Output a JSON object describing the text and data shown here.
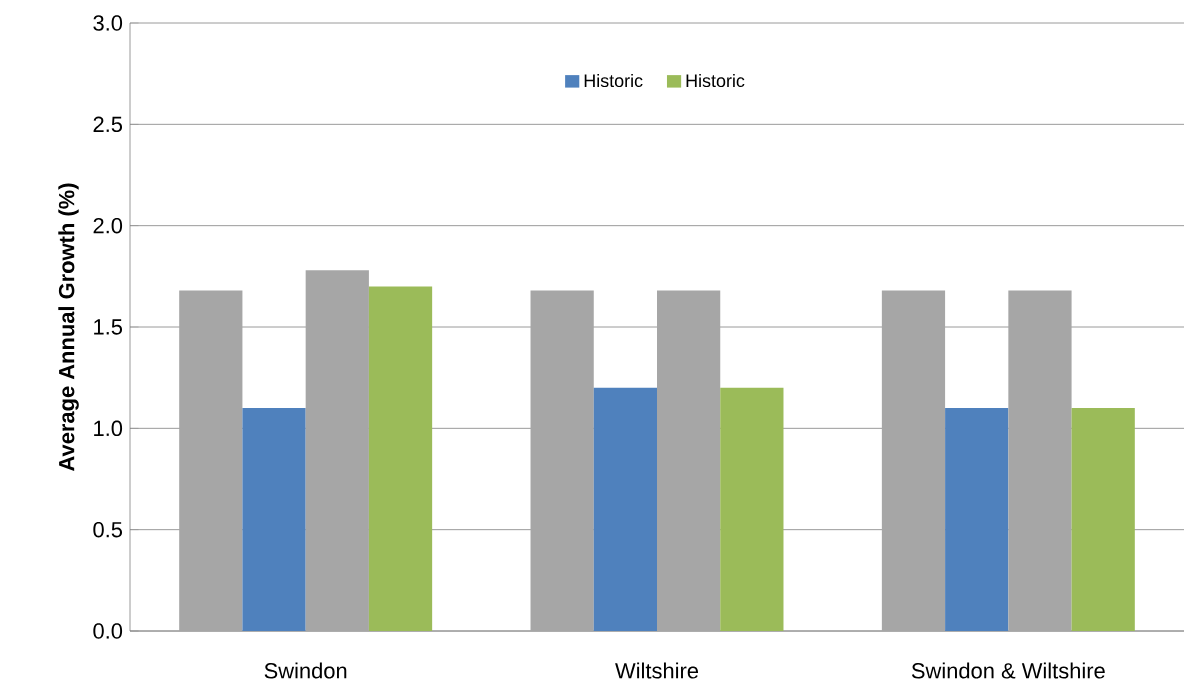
{
  "chart_data": {
    "type": "bar",
    "ylabel": "Average Annual Growth (%)",
    "categories": [
      "Swindon",
      "Wiltshire",
      "Swindon & Wiltshire"
    ],
    "series": [
      {
        "color": "#a6a6a6",
        "values": [
          1.68,
          1.68,
          1.68
        ]
      },
      {
        "name": "Historic",
        "color": "#4f81bd",
        "values": [
          1.1,
          1.2,
          1.1
        ]
      },
      {
        "color": "#a6a6a6",
        "values": [
          1.78,
          1.68,
          1.68
        ]
      },
      {
        "name": "Historic",
        "color": "#9bbb59",
        "values": [
          1.7,
          1.2,
          1.1
        ]
      }
    ],
    "ylim": [
      0,
      3
    ],
    "yticks": [
      {
        "value": 0,
        "label": "0.0"
      },
      {
        "value": 0.5,
        "label": "0.5"
      },
      {
        "value": 1,
        "label": "1.0"
      },
      {
        "value": 1.5,
        "label": "1.5"
      },
      {
        "value": 2,
        "label": "2.0"
      },
      {
        "value": 2.5,
        "label": "2.5"
      },
      {
        "value": 3,
        "label": "3.0"
      }
    ],
    "grid": "y",
    "legend": "top"
  }
}
